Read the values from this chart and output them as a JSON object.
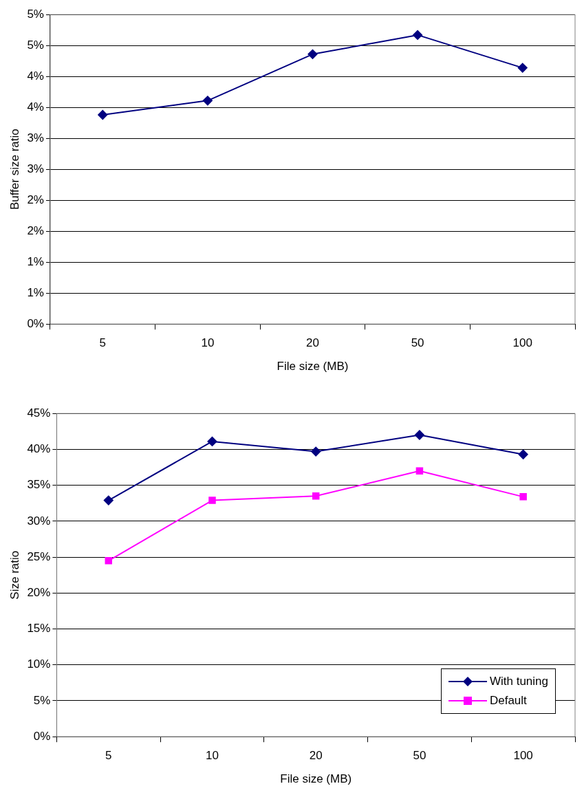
{
  "chart_data": [
    {
      "type": "line",
      "xlabel": "File size (MB)",
      "ylabel": "Buffer size ratio",
      "categories": [
        "5",
        "10",
        "20",
        "50",
        "100"
      ],
      "series": [
        {
          "color": "#000080",
          "marker": "diamond",
          "values": [
            3.38,
            3.61,
            4.36,
            4.67,
            4.14
          ]
        }
      ],
      "ylim": [
        0,
        5
      ],
      "yticks": [
        {
          "value": 0,
          "label": "0%"
        },
        {
          "value": 0.5,
          "label": "1%"
        },
        {
          "value": 1,
          "label": "1%"
        },
        {
          "value": 1.5,
          "label": "2%"
        },
        {
          "value": 2,
          "label": "2%"
        },
        {
          "value": 2.5,
          "label": "3%"
        },
        {
          "value": 3,
          "label": "3%"
        },
        {
          "value": 3.5,
          "label": "4%"
        },
        {
          "value": 4,
          "label": "4%"
        },
        {
          "value": 4.5,
          "label": "5%"
        },
        {
          "value": 5,
          "label": "5%"
        }
      ],
      "grid": "y",
      "line_style": "solid"
    },
    {
      "type": "line",
      "xlabel": "File size (MB)",
      "ylabel": "Size ratio",
      "categories": [
        "5",
        "10",
        "20",
        "50",
        "100"
      ],
      "series": [
        {
          "name": "With tuning",
          "color": "#000080",
          "marker": "diamond",
          "values": [
            32.9,
            41.1,
            39.7,
            42.0,
            39.3
          ]
        },
        {
          "name": "Default",
          "color": "#ff00ff",
          "marker": "square",
          "values": [
            24.5,
            32.9,
            33.5,
            37.0,
            33.4
          ]
        }
      ],
      "ylim": [
        0,
        45
      ],
      "yticks": [
        {
          "value": 0,
          "label": "0%"
        },
        {
          "value": 5,
          "label": "5%"
        },
        {
          "value": 10,
          "label": "10%"
        },
        {
          "value": 15,
          "label": "15%"
        },
        {
          "value": 20,
          "label": "20%"
        },
        {
          "value": 25,
          "label": "25%"
        },
        {
          "value": 30,
          "label": "30%"
        },
        {
          "value": 35,
          "label": "35%"
        },
        {
          "value": 40,
          "label": "40%"
        },
        {
          "value": 45,
          "label": "45%"
        }
      ],
      "grid": "y",
      "legend": "bottom right",
      "line_style": "solid"
    }
  ]
}
